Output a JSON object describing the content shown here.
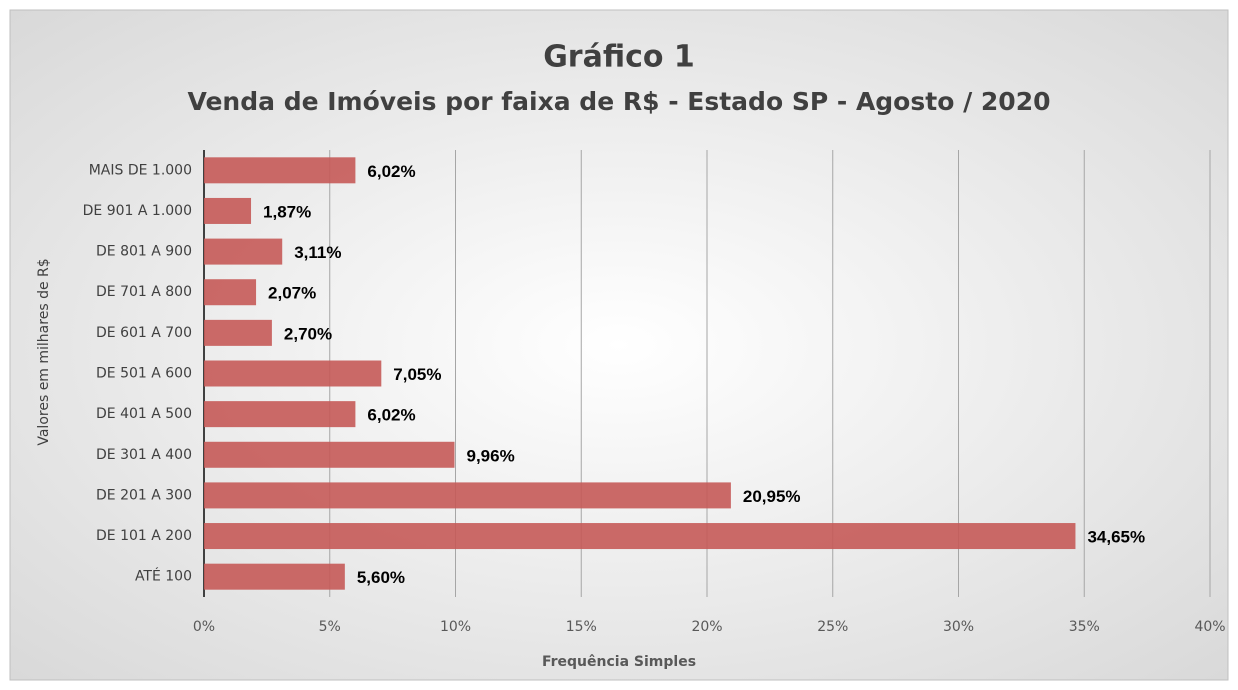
{
  "chart_data": {
    "type": "bar",
    "orientation": "horizontal",
    "title": "Gráfico 1",
    "subtitle": "Venda de Imóveis por faixa de R$ - Estado SP - Agosto / 2020",
    "x_label": "Frequência Simples",
    "y_label": "Valores em milhares de R$",
    "categories": [
      "MAIS DE 1.000",
      "DE 901 A 1.000",
      "DE 801 A 900",
      "DE 701 A 800",
      "DE 601 A 700",
      "DE 501 A 600",
      "DE 401 A 500",
      "DE 301 A 400",
      "DE 201 A 300",
      "DE 101 A 200",
      "ATÉ 100"
    ],
    "values": [
      6.02,
      1.87,
      3.11,
      2.07,
      2.7,
      7.05,
      6.02,
      9.96,
      20.95,
      34.65,
      5.6
    ],
    "value_labels": [
      "6,02%",
      "1,87%",
      "3,11%",
      "2,07%",
      "2,70%",
      "7,05%",
      "6,02%",
      "9,96%",
      "20,95%",
      "34,65%",
      "5,60%"
    ],
    "color": "#c55a58",
    "xlim": [
      0,
      40
    ],
    "xticks": [
      {
        "value": 0,
        "label": "0%"
      },
      {
        "value": 5,
        "label": "5%"
      },
      {
        "value": 10,
        "label": "10%"
      },
      {
        "value": 15,
        "label": "15%"
      },
      {
        "value": 20,
        "label": "20%"
      },
      {
        "value": 25,
        "label": "25%"
      },
      {
        "value": 30,
        "label": "30%"
      },
      {
        "value": 35,
        "label": "35%"
      },
      {
        "value": 40,
        "label": "40%"
      }
    ],
    "grid": true
  }
}
